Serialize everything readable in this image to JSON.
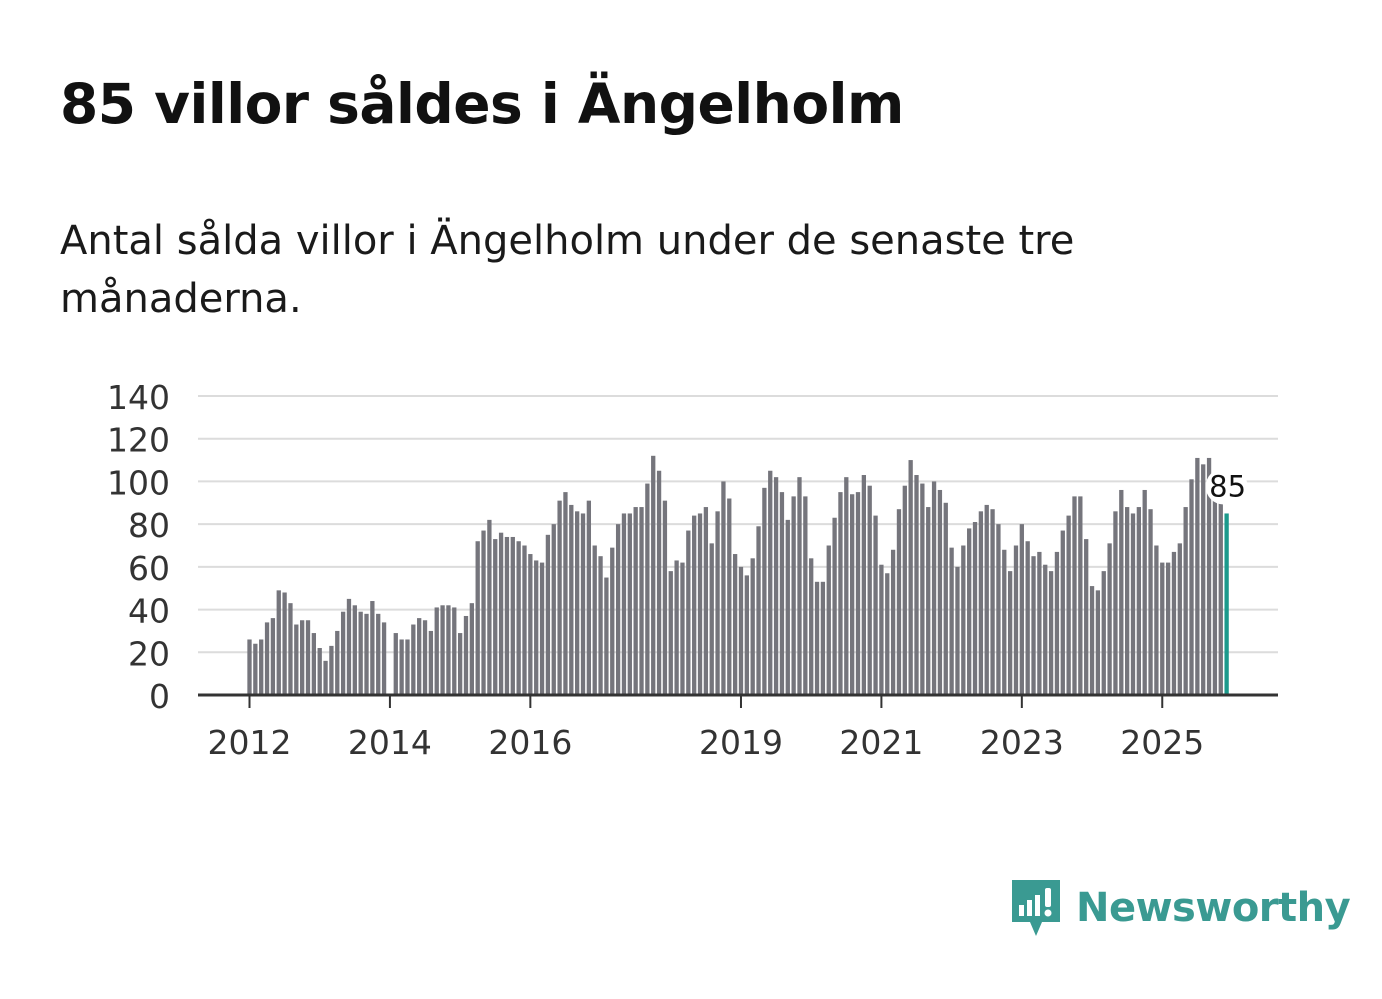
{
  "title": "85 villor såldes i Ängelholm",
  "subtitle": "Antal sålda villor i Ängelholm under de senaste tre månaderna.",
  "brand": {
    "name": "Newsworthy",
    "color": "#3a9a92"
  },
  "colors": {
    "bar": "#75757c",
    "highlight": "#1c9a8c",
    "grid": "#dcdcdc",
    "axis": "#333333",
    "label": "#333333"
  },
  "chart_data": {
    "type": "bar",
    "title": "85 villor såldes i Ängelholm",
    "xlabel": "",
    "ylabel": "",
    "ylim": [
      0,
      140
    ],
    "yticks": [
      0,
      20,
      40,
      60,
      80,
      100,
      120,
      140
    ],
    "grid": true,
    "series": [
      {
        "name": "Antal sålda villor (rullande tre månader)",
        "start": "2012-01",
        "values": [
          26,
          24,
          26,
          34,
          36,
          49,
          48,
          43,
          33,
          35,
          35,
          29,
          22,
          16,
          23,
          30,
          39,
          45,
          42,
          39,
          38,
          44,
          38,
          34,
          null,
          29,
          26,
          26,
          33,
          36,
          35,
          30,
          41,
          42,
          42,
          41,
          29,
          37,
          43,
          72,
          77,
          82,
          73,
          76,
          74,
          74,
          72,
          70,
          66,
          63,
          62,
          75,
          80,
          91,
          95,
          89,
          86,
          85,
          91,
          70,
          65,
          55,
          69,
          80,
          85,
          85,
          88,
          88,
          99,
          112,
          105,
          91,
          58,
          63,
          62,
          77,
          84,
          85,
          88,
          71,
          86,
          100,
          92,
          66,
          60,
          56,
          64,
          79,
          97,
          105,
          102,
          95,
          82,
          93,
          102,
          93,
          64,
          53,
          53,
          70,
          83,
          95,
          102,
          94,
          95,
          103,
          98,
          84,
          61,
          57,
          68,
          87,
          98,
          110,
          103,
          99,
          88,
          100,
          96,
          90,
          69,
          60,
          70,
          78,
          81,
          86,
          89,
          87,
          80,
          68,
          58,
          70,
          80,
          72,
          65,
          67,
          61,
          58,
          67,
          77,
          84,
          93,
          93,
          73,
          51,
          49,
          58,
          71,
          86,
          96,
          88,
          85,
          88,
          96,
          87,
          70,
          62,
          62,
          67,
          71,
          88,
          101,
          111,
          108,
          111,
          94,
          92,
          85
        ]
      }
    ],
    "x_tick_labels": [
      {
        "label": "2012",
        "index": 0
      },
      {
        "label": "2014",
        "index": 24
      },
      {
        "label": "2016",
        "index": 48
      },
      {
        "label": "2019",
        "index": 84
      },
      {
        "label": "2021",
        "index": 108
      },
      {
        "label": "2023",
        "index": 132
      },
      {
        "label": "2025",
        "index": 156
      }
    ],
    "annotations": [
      {
        "label": "85",
        "index": 167,
        "value": 85
      }
    ]
  }
}
